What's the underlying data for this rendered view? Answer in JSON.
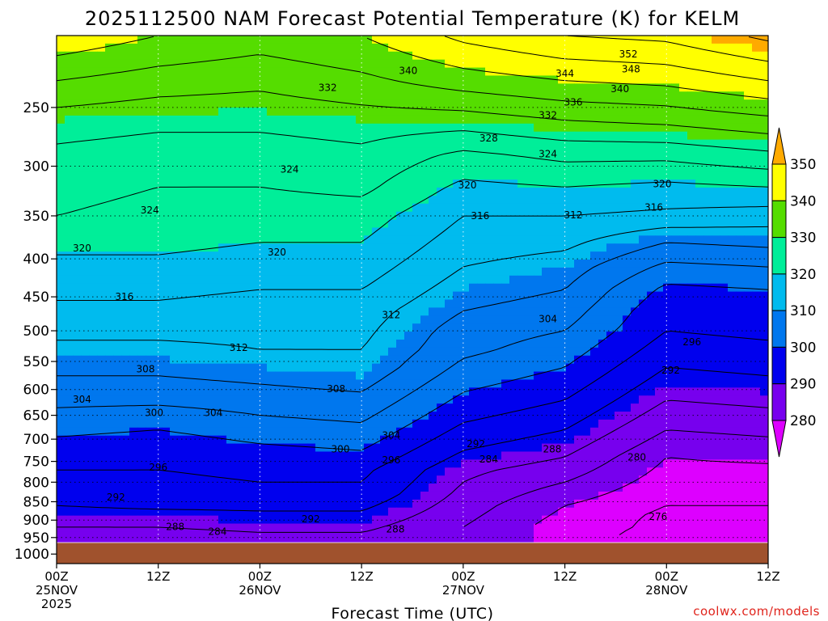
{
  "chart_data": {
    "type": "contour",
    "title": "2025112500 NAM Forecast Potential Temperature (K) for KELM",
    "xlabel": "Forecast Time (UTC)",
    "ylabel": "",
    "credit": "coolwx.com/models",
    "y_ticks": [
      "250",
      "300",
      "350",
      "400",
      "450",
      "500",
      "550",
      "600",
      "650",
      "700",
      "750",
      "800",
      "850",
      "900",
      "950",
      "1000"
    ],
    "y_values": [
      250,
      300,
      350,
      400,
      450,
      500,
      550,
      600,
      650,
      700,
      750,
      800,
      850,
      900,
      950,
      1000
    ],
    "ylim": [
      200,
      1030
    ],
    "x_ticks": [
      {
        "hours": 0,
        "line1": "00Z",
        "line2": "25NOV",
        "line3": "2025"
      },
      {
        "hours": 12,
        "line1": "12Z",
        "line2": "",
        "line3": ""
      },
      {
        "hours": 24,
        "line1": "00Z",
        "line2": "26NOV",
        "line3": ""
      },
      {
        "hours": 36,
        "line1": "12Z",
        "line2": "",
        "line3": ""
      },
      {
        "hours": 48,
        "line1": "00Z",
        "line2": "27NOV",
        "line3": ""
      },
      {
        "hours": 60,
        "line1": "12Z",
        "line2": "",
        "line3": ""
      },
      {
        "hours": 72,
        "line1": "00Z",
        "line2": "28NOV",
        "line3": ""
      },
      {
        "hours": 84,
        "line1": "12Z",
        "line2": "",
        "line3": ""
      }
    ],
    "xlim": [
      0,
      84
    ],
    "colorbar": {
      "ticks": [
        "350",
        "340",
        "330",
        "320",
        "310",
        "300",
        "290",
        "280"
      ],
      "bands": [
        {
          "min": 350,
          "max": 360,
          "color": "#ffaa00"
        },
        {
          "min": 340,
          "max": 350,
          "color": "#ffff00"
        },
        {
          "min": 330,
          "max": 340,
          "color": "#55dd00"
        },
        {
          "min": 320,
          "max": 330,
          "color": "#00ee99"
        },
        {
          "min": 310,
          "max": 320,
          "color": "#00bbee"
        },
        {
          "min": 300,
          "max": 310,
          "color": "#0077ee"
        },
        {
          "min": 290,
          "max": 300,
          "color": "#0000ee"
        },
        {
          "min": 280,
          "max": 290,
          "color": "#7700ee"
        },
        {
          "min": 270,
          "max": 280,
          "color": "#dd00ff"
        }
      ]
    },
    "ground_color": "#a0522d",
    "surface_pressure": 965,
    "contour_levels": [
      276,
      280,
      284,
      288,
      292,
      296,
      300,
      304,
      308,
      312,
      316,
      320,
      324,
      328,
      332,
      336,
      340,
      344,
      348,
      352
    ],
    "theta_profiles": [
      {
        "hours": 0,
        "pressure": [
          200,
          230,
          260,
          290,
          320,
          350,
          380,
          410,
          440,
          470,
          500,
          530,
          560,
          590,
          620,
          650,
          680,
          710,
          740,
          770,
          800,
          830,
          860,
          890,
          920,
          950,
          965
        ],
        "theta": [
          343,
          336,
          330,
          327,
          325,
          324,
          321,
          319,
          317,
          315,
          313,
          311,
          309,
          307,
          305,
          303,
          301,
          299,
          298,
          296,
          295,
          294,
          292,
          290,
          288,
          285,
          284
        ]
      },
      {
        "hours": 12,
        "pressure": [
          200,
          230,
          260,
          290,
          320,
          350,
          380,
          410,
          440,
          470,
          500,
          530,
          560,
          590,
          620,
          650,
          680,
          710,
          740,
          770,
          800,
          830,
          860,
          890,
          920,
          950,
          965
        ],
        "theta": [
          340,
          334,
          329,
          326,
          324,
          323,
          321,
          319,
          317,
          315,
          313,
          311,
          309,
          307,
          305,
          302,
          300,
          298,
          297,
          296,
          295,
          294,
          293,
          290,
          288,
          286,
          285
        ]
      },
      {
        "hours": 24,
        "pressure": [
          200,
          230,
          260,
          290,
          320,
          350,
          380,
          410,
          440,
          470,
          500,
          530,
          560,
          590,
          620,
          650,
          680,
          710,
          740,
          770,
          800,
          830,
          860,
          890,
          920,
          950,
          965
        ],
        "theta": [
          338,
          333,
          329,
          326,
          324,
          322,
          320,
          318,
          316,
          314,
          313,
          312,
          310,
          308,
          306,
          304,
          302,
          300,
          298,
          297,
          296,
          295,
          293,
          291,
          289,
          287,
          286
        ]
      },
      {
        "hours": 36,
        "pressure": [
          200,
          230,
          260,
          290,
          320,
          350,
          380,
          410,
          440,
          470,
          500,
          530,
          560,
          590,
          620,
          650,
          680,
          710,
          740,
          770,
          800,
          830,
          860,
          890,
          920,
          950,
          965
        ],
        "theta": [
          340,
          335,
          330,
          327,
          325,
          322,
          320,
          318,
          316,
          314,
          313,
          312,
          311,
          309,
          307,
          305,
          303,
          301,
          299,
          297,
          296,
          295,
          293,
          291,
          289,
          287,
          286
        ]
      },
      {
        "hours": 48,
        "pressure": [
          200,
          230,
          260,
          290,
          320,
          350,
          380,
          410,
          440,
          470,
          500,
          530,
          560,
          590,
          620,
          650,
          680,
          710,
          740,
          770,
          800,
          830,
          860,
          890,
          920,
          950,
          965
        ],
        "theta": [
          345,
          338,
          330,
          323,
          319,
          316,
          314,
          312,
          310,
          308,
          306,
          305,
          303,
          301,
          299,
          297,
          295,
          293,
          291,
          289,
          288,
          287,
          286,
          285,
          284,
          284,
          284
        ]
      },
      {
        "hours": 60,
        "pressure": [
          200,
          230,
          260,
          290,
          320,
          350,
          380,
          410,
          440,
          470,
          500,
          530,
          560,
          590,
          620,
          650,
          680,
          710,
          740,
          770,
          800,
          830,
          860,
          890,
          920,
          950,
          965
        ],
        "theta": [
          348,
          340,
          332,
          325,
          320,
          316,
          313,
          310,
          308,
          306,
          304,
          302,
          300,
          298,
          296,
          294,
          292,
          290,
          288,
          286,
          284,
          282,
          280,
          279,
          278,
          278,
          278
        ]
      },
      {
        "hours": 72,
        "pressure": [
          200,
          230,
          260,
          290,
          320,
          350,
          380,
          410,
          440,
          470,
          500,
          530,
          560,
          590,
          620,
          650,
          680,
          710,
          740,
          770,
          800,
          830,
          860,
          890,
          920,
          950,
          965
        ],
        "theta": [
          349,
          341,
          333,
          325,
          319,
          315,
          308,
          303,
          299,
          297,
          296,
          294,
          292,
          290,
          288,
          286,
          284,
          282,
          280,
          279,
          278,
          277,
          276,
          275,
          275,
          274,
          274
        ]
      },
      {
        "hours": 84,
        "pressure": [
          200,
          230,
          260,
          290,
          320,
          350,
          380,
          410,
          440,
          470,
          500,
          530,
          560,
          590,
          620,
          650,
          680,
          710,
          740,
          770,
          800,
          830,
          860,
          890,
          920,
          950,
          965
        ],
        "theta": [
          353,
          344,
          335,
          327,
          320,
          314,
          309,
          304,
          300,
          298,
          297,
          295,
          293,
          291,
          289,
          287,
          285,
          283,
          281,
          279,
          278,
          277,
          276,
          276,
          275,
          275,
          275
        ]
      }
    ],
    "contour_labels": [
      {
        "text": "352",
        "hours": 67.5,
        "pressure": 212
      },
      {
        "text": "348",
        "hours": 67.8,
        "pressure": 222
      },
      {
        "text": "340",
        "hours": 41.5,
        "pressure": 223
      },
      {
        "text": "344",
        "hours": 60,
        "pressure": 225
      },
      {
        "text": "332",
        "hours": 32,
        "pressure": 235
      },
      {
        "text": "340",
        "hours": 66.5,
        "pressure": 236
      },
      {
        "text": "336",
        "hours": 61,
        "pressure": 246
      },
      {
        "text": "332",
        "hours": 58,
        "pressure": 256
      },
      {
        "text": "328",
        "hours": 51,
        "pressure": 275
      },
      {
        "text": "324",
        "hours": 58,
        "pressure": 289
      },
      {
        "text": "324",
        "hours": 27.5,
        "pressure": 303
      },
      {
        "text": "320",
        "hours": 48.5,
        "pressure": 318
      },
      {
        "text": "320",
        "hours": 71.5,
        "pressure": 317
      },
      {
        "text": "324",
        "hours": 11,
        "pressure": 344
      },
      {
        "text": "316",
        "hours": 50,
        "pressure": 350
      },
      {
        "text": "312",
        "hours": 61,
        "pressure": 349
      },
      {
        "text": "316",
        "hours": 70.5,
        "pressure": 341
      },
      {
        "text": "320",
        "hours": 3,
        "pressure": 387
      },
      {
        "text": "320",
        "hours": 26,
        "pressure": 392
      },
      {
        "text": "316",
        "hours": 8,
        "pressure": 450
      },
      {
        "text": "312",
        "hours": 39.5,
        "pressure": 476
      },
      {
        "text": "304",
        "hours": 58,
        "pressure": 482
      },
      {
        "text": "312",
        "hours": 21.5,
        "pressure": 527
      },
      {
        "text": "296",
        "hours": 75,
        "pressure": 518
      },
      {
        "text": "308",
        "hours": 10.5,
        "pressure": 563
      },
      {
        "text": "292",
        "hours": 72.5,
        "pressure": 565
      },
      {
        "text": "308",
        "hours": 33,
        "pressure": 599
      },
      {
        "text": "304",
        "hours": 3,
        "pressure": 619
      },
      {
        "text": "300",
        "hours": 11.5,
        "pressure": 645
      },
      {
        "text": "304",
        "hours": 18.5,
        "pressure": 645
      },
      {
        "text": "304",
        "hours": 39.5,
        "pressure": 692
      },
      {
        "text": "292",
        "hours": 49.5,
        "pressure": 710
      },
      {
        "text": "300",
        "hours": 33.5,
        "pressure": 722
      },
      {
        "text": "288",
        "hours": 58.5,
        "pressure": 722
      },
      {
        "text": "284",
        "hours": 51,
        "pressure": 745
      },
      {
        "text": "296",
        "hours": 39.5,
        "pressure": 747
      },
      {
        "text": "280",
        "hours": 68.5,
        "pressure": 740
      },
      {
        "text": "296",
        "hours": 12,
        "pressure": 764
      },
      {
        "text": "292",
        "hours": 7,
        "pressure": 838
      },
      {
        "text": "276",
        "hours": 71,
        "pressure": 890
      },
      {
        "text": "292",
        "hours": 30,
        "pressure": 897
      },
      {
        "text": "288",
        "hours": 14,
        "pressure": 919
      },
      {
        "text": "284",
        "hours": 19,
        "pressure": 933
      },
      {
        "text": "288",
        "hours": 40,
        "pressure": 926
      }
    ]
  }
}
